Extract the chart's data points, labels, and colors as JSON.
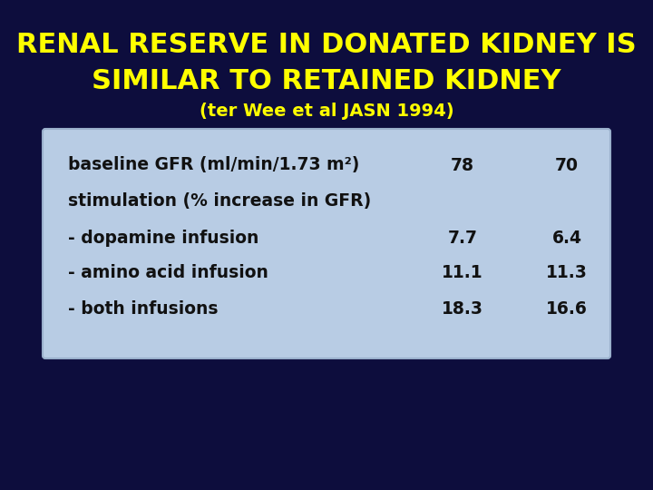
{
  "background_color": "#0d0d3d",
  "title_line1": "RENAL RESERVE IN DONATED KIDNEY IS",
  "title_line2": "SIMILAR TO RETAINED KIDNEY",
  "subtitle_pre": "(ter Wee et al ",
  "subtitle_jasn": "JASN",
  "subtitle_post": " 1994)",
  "title_color": "#ffff00",
  "subtitle_color": "#ffff00",
  "table_bg_color": "#b8cce4",
  "table_text_color": "#111111",
  "table_rows": [
    {
      "label": "baseline GFR (ml/min/1.73 m²)",
      "col1": "78",
      "col2": "70"
    },
    {
      "label": "stimulation (% increase in GFR)",
      "col1": "",
      "col2": ""
    },
    {
      "label": "- dopamine infusion",
      "col1": "7.7",
      "col2": "6.4"
    },
    {
      "label": "- amino acid infusion",
      "col1": "11.1",
      "col2": "11.3"
    },
    {
      "label": "- both infusions",
      "col1": "18.3",
      "col2": "16.6"
    }
  ],
  "title_fontsize": 22,
  "subtitle_fontsize": 14,
  "table_fontsize": 13.5
}
